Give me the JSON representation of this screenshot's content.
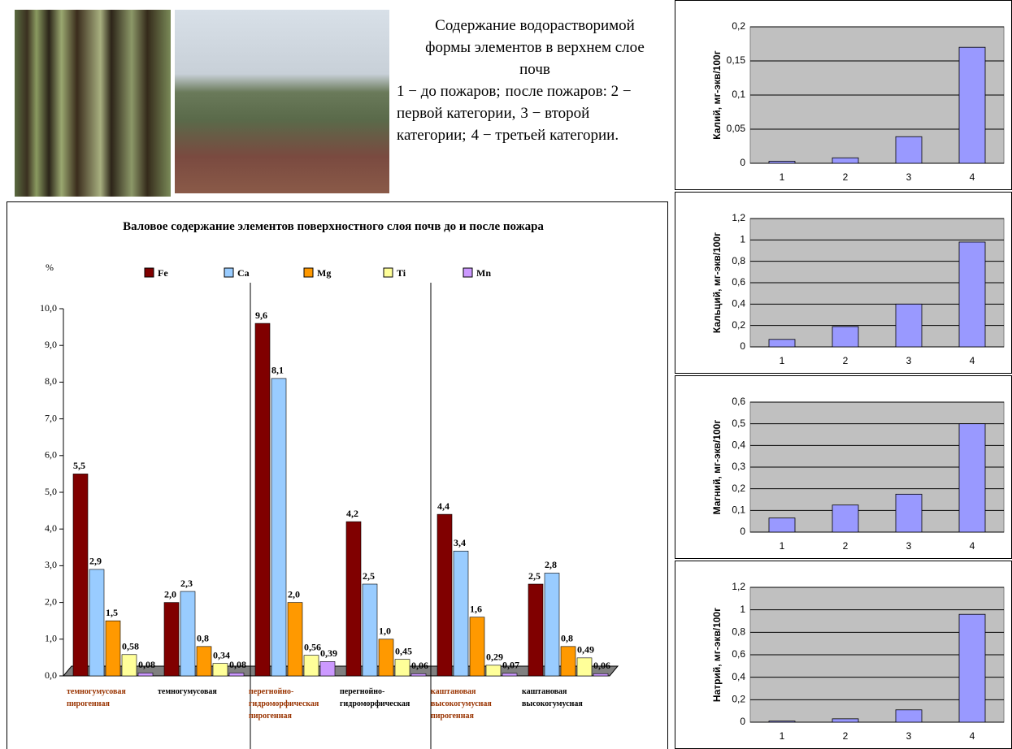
{
  "caption": {
    "title": "Содержание водорастворимой формы элементов в верхнем слое почв",
    "items": [
      "1 − до пожаров;",
      "после пожаров: 2 − первой категории,",
      "3 − второй категории;",
      "4 − третьей категории."
    ]
  },
  "chart_data": [
    {
      "type": "bar",
      "title": "Валовое содержание элементов поверхностного слоя почв до и после пожара",
      "y_label": "%",
      "categories": [
        "темногумусовая пирогенная",
        "темногумусовая",
        "перегнойно-гидроморфическая пирогенная",
        "перегнойно-гидроморфическая",
        "каштановая высокогумусная пирогенная",
        "каштановая высокогумусная"
      ],
      "category_label_colors": [
        "#993300",
        "#000000",
        "#993300",
        "#000000",
        "#993300",
        "#000000"
      ],
      "series": [
        {
          "name": "Fe",
          "color": "#800000",
          "values": [
            5.5,
            2.0,
            9.6,
            4.2,
            4.4,
            2.5
          ],
          "value_labels": [
            "5,5",
            "2,0",
            "9,6",
            "4,2",
            "4,4",
            "2,5"
          ]
        },
        {
          "name": "Ca",
          "color": "#99ccff",
          "values": [
            2.9,
            2.3,
            8.1,
            2.5,
            3.4,
            2.8
          ],
          "value_labels": [
            "2,9",
            "2,3",
            "8,1",
            "2,5",
            "3,4",
            "2,8"
          ]
        },
        {
          "name": "Mg",
          "color": "#ff9900",
          "values": [
            1.5,
            0.8,
            2.0,
            1.0,
            1.6,
            0.8
          ],
          "value_labels": [
            "1,5",
            "0,8",
            "2,0",
            "1,0",
            "1,6",
            "0,8"
          ]
        },
        {
          "name": "Ti",
          "color": "#ffff99",
          "values": [
            0.58,
            0.34,
            0.56,
            0.45,
            0.29,
            0.49
          ],
          "value_labels": [
            "0,58",
            "0,34",
            "0,56",
            "0,45",
            "0,29",
            "0,49"
          ]
        },
        {
          "name": "Mn",
          "color": "#cc99ff",
          "values": [
            0.08,
            0.08,
            0.39,
            0.06,
            0.07,
            0.06
          ],
          "value_labels": [
            "0,08",
            "0,08",
            "0,39",
            "0,06",
            "0,07",
            "0,06"
          ]
        }
      ],
      "ylim": [
        0,
        10
      ],
      "yticks": [
        {
          "value": 0,
          "label": "0,0"
        },
        {
          "value": 1,
          "label": "1,0"
        },
        {
          "value": 2,
          "label": "2,0"
        },
        {
          "value": 3,
          "label": "3,0"
        },
        {
          "value": 4,
          "label": "4,0"
        },
        {
          "value": 5,
          "label": "5,0"
        },
        {
          "value": 6,
          "label": "6,0"
        },
        {
          "value": 7,
          "label": "7,0"
        },
        {
          "value": 8,
          "label": "8,0"
        },
        {
          "value": 9,
          "label": "9,0"
        },
        {
          "value": 10,
          "label": "10,0"
        }
      ],
      "legend": "top"
    },
    {
      "type": "bar",
      "y_label": "Калий, мг-экв/100г",
      "categories": [
        "1",
        "2",
        "3",
        "4"
      ],
      "values": [
        0.003,
        0.008,
        0.039,
        0.17
      ],
      "color": "#9999ff",
      "ylim": [
        0,
        0.2
      ],
      "yticks": [
        0,
        {
          "value": 0.05,
          "label": "0,05"
        },
        {
          "value": 0.1,
          "label": "0,1"
        },
        {
          "value": 0.15,
          "label": "0,15"
        },
        {
          "value": 0.2,
          "label": "0,2"
        }
      ],
      "grid": true
    },
    {
      "type": "bar",
      "y_label": "Кальций, мг-экв/100г",
      "categories": [
        "1",
        "2",
        "3",
        "4"
      ],
      "values": [
        0.07,
        0.19,
        0.4,
        0.98
      ],
      "color": "#9999ff",
      "ylim": [
        0,
        1.2
      ],
      "yticks": [
        0,
        {
          "value": 0.2,
          "label": "0,2"
        },
        {
          "value": 0.4,
          "label": "0,4"
        },
        {
          "value": 0.6,
          "label": "0,6"
        },
        {
          "value": 0.8,
          "label": "0,8"
        },
        1,
        {
          "value": 1.2,
          "label": "1,2"
        }
      ],
      "grid": true
    },
    {
      "type": "bar",
      "y_label": "Магний, мг-экв/100г",
      "categories": [
        "1",
        "2",
        "3",
        "4"
      ],
      "values": [
        0.065,
        0.125,
        0.175,
        0.5
      ],
      "color": "#9999ff",
      "ylim": [
        0,
        0.6
      ],
      "yticks": [
        0,
        {
          "value": 0.1,
          "label": "0,1"
        },
        {
          "value": 0.2,
          "label": "0,2"
        },
        {
          "value": 0.3,
          "label": "0,3"
        },
        {
          "value": 0.4,
          "label": "0,4"
        },
        {
          "value": 0.5,
          "label": "0,5"
        },
        {
          "value": 0.6,
          "label": "0,6"
        }
      ],
      "grid": true
    },
    {
      "type": "bar",
      "y_label": "Натрий, мг-экв/100г",
      "categories": [
        "1",
        "2",
        "3",
        "4"
      ],
      "values": [
        0.01,
        0.03,
        0.11,
        0.96
      ],
      "color": "#9999ff",
      "ylim": [
        0,
        1.2
      ],
      "yticks": [
        0,
        {
          "value": 0.2,
          "label": "0,2"
        },
        {
          "value": 0.4,
          "label": "0,4"
        },
        {
          "value": 0.6,
          "label": "0,6"
        },
        {
          "value": 0.8,
          "label": "0,8"
        },
        1,
        {
          "value": 1.2,
          "label": "1,2"
        }
      ],
      "grid": true
    }
  ]
}
